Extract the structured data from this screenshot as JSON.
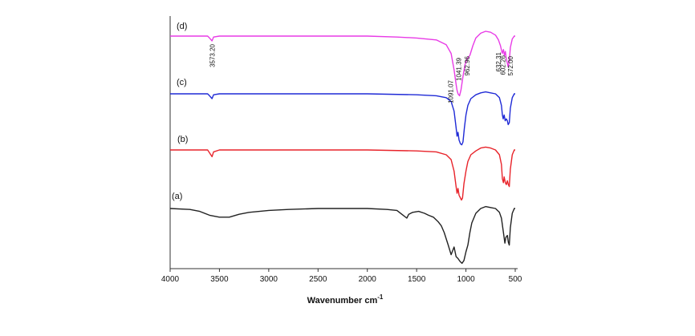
{
  "chart_data": {
    "type": "line",
    "title": "",
    "xlabel": "Wavenumber cm",
    "xlabel_superscript": "-1",
    "ylabel": "",
    "xlim": [
      4000,
      500
    ],
    "x_reversed": true,
    "xticks": [
      "4000",
      "3500",
      "3000",
      "2500",
      "2000",
      "1500",
      "1000",
      "500"
    ],
    "grid": false,
    "legend": "none",
    "series": [
      {
        "name": "(a)",
        "color": "#222222",
        "points": [
          [
            4000,
            0
          ],
          [
            3800,
            -1
          ],
          [
            3700,
            -3
          ],
          [
            3600,
            -7
          ],
          [
            3500,
            -9
          ],
          [
            3400,
            -9
          ],
          [
            3300,
            -6
          ],
          [
            3200,
            -4
          ],
          [
            3000,
            -2
          ],
          [
            2800,
            -1
          ],
          [
            2500,
            0
          ],
          [
            2200,
            0
          ],
          [
            2000,
            0
          ],
          [
            1800,
            -1
          ],
          [
            1700,
            -2
          ],
          [
            1650,
            -6
          ],
          [
            1600,
            -10
          ],
          [
            1580,
            -6
          ],
          [
            1540,
            -4
          ],
          [
            1480,
            -3
          ],
          [
            1420,
            -5
          ],
          [
            1380,
            -7
          ],
          [
            1330,
            -9
          ],
          [
            1280,
            -14
          ],
          [
            1250,
            -18
          ],
          [
            1220,
            -25
          ],
          [
            1180,
            -38
          ],
          [
            1150,
            -48
          ],
          [
            1120,
            -40
          ],
          [
            1100,
            -50
          ],
          [
            1080,
            -52
          ],
          [
            1060,
            -55
          ],
          [
            1040,
            -57
          ],
          [
            1020,
            -54
          ],
          [
            1000,
            -45
          ],
          [
            980,
            -38
          ],
          [
            960,
            -25
          ],
          [
            940,
            -15
          ],
          [
            900,
            -5
          ],
          [
            850,
            0
          ],
          [
            800,
            2
          ],
          [
            750,
            1
          ],
          [
            700,
            0
          ],
          [
            660,
            -4
          ],
          [
            640,
            -10
          ],
          [
            620,
            -25
          ],
          [
            605,
            -36
          ],
          [
            595,
            -30
          ],
          [
            580,
            -28
          ],
          [
            570,
            -35
          ],
          [
            560,
            -38
          ],
          [
            550,
            -20
          ],
          [
            530,
            -5
          ],
          [
            510,
            0
          ],
          [
            500,
            0
          ]
        ]
      },
      {
        "name": "(b)",
        "color": "#e8232a",
        "points": [
          [
            4000,
            0
          ],
          [
            3800,
            0
          ],
          [
            3620,
            0
          ],
          [
            3600,
            -3
          ],
          [
            3575,
            -7
          ],
          [
            3560,
            -2
          ],
          [
            3500,
            0
          ],
          [
            3000,
            0
          ],
          [
            2500,
            0
          ],
          [
            2000,
            0
          ],
          [
            1500,
            -1
          ],
          [
            1300,
            -2
          ],
          [
            1200,
            -5
          ],
          [
            1150,
            -10
          ],
          [
            1120,
            -22
          ],
          [
            1100,
            -38
          ],
          [
            1090,
            -45
          ],
          [
            1080,
            -40
          ],
          [
            1070,
            -47
          ],
          [
            1055,
            -50
          ],
          [
            1045,
            -52
          ],
          [
            1035,
            -50
          ],
          [
            1020,
            -35
          ],
          [
            1000,
            -22
          ],
          [
            980,
            -12
          ],
          [
            950,
            -5
          ],
          [
            900,
            -1
          ],
          [
            850,
            2
          ],
          [
            800,
            3
          ],
          [
            750,
            2
          ],
          [
            700,
            0
          ],
          [
            660,
            -5
          ],
          [
            640,
            -15
          ],
          [
            630,
            -30
          ],
          [
            620,
            -34
          ],
          [
            612,
            -28
          ],
          [
            600,
            -34
          ],
          [
            590,
            -36
          ],
          [
            580,
            -32
          ],
          [
            570,
            -36
          ],
          [
            560,
            -38
          ],
          [
            550,
            -20
          ],
          [
            530,
            -5
          ],
          [
            510,
            0
          ],
          [
            500,
            0
          ]
        ]
      },
      {
        "name": "(c)",
        "color": "#1f2ad6",
        "points": [
          [
            4000,
            0
          ],
          [
            3800,
            0
          ],
          [
            3620,
            0
          ],
          [
            3600,
            -2
          ],
          [
            3575,
            -5
          ],
          [
            3560,
            -1
          ],
          [
            3500,
            0
          ],
          [
            3000,
            0
          ],
          [
            2500,
            0
          ],
          [
            2000,
            0
          ],
          [
            1500,
            -1
          ],
          [
            1300,
            -2
          ],
          [
            1200,
            -4
          ],
          [
            1150,
            -8
          ],
          [
            1120,
            -18
          ],
          [
            1100,
            -35
          ],
          [
            1090,
            -44
          ],
          [
            1080,
            -40
          ],
          [
            1070,
            -48
          ],
          [
            1055,
            -52
          ],
          [
            1042,
            -53
          ],
          [
            1030,
            -50
          ],
          [
            1015,
            -35
          ],
          [
            1000,
            -22
          ],
          [
            980,
            -12
          ],
          [
            950,
            -5
          ],
          [
            900,
            -1
          ],
          [
            850,
            1
          ],
          [
            800,
            2
          ],
          [
            750,
            1
          ],
          [
            700,
            0
          ],
          [
            660,
            -4
          ],
          [
            640,
            -12
          ],
          [
            630,
            -22
          ],
          [
            622,
            -26
          ],
          [
            612,
            -22
          ],
          [
            602,
            -28
          ],
          [
            590,
            -26
          ],
          [
            580,
            -28
          ],
          [
            572,
            -32
          ],
          [
            560,
            -30
          ],
          [
            550,
            -15
          ],
          [
            530,
            -4
          ],
          [
            510,
            0
          ],
          [
            500,
            0
          ]
        ]
      },
      {
        "name": "(d)",
        "color": "#e83be6",
        "points": [
          [
            4000,
            0
          ],
          [
            3800,
            0
          ],
          [
            3620,
            0
          ],
          [
            3600,
            -2
          ],
          [
            3575,
            -5
          ],
          [
            3560,
            -1
          ],
          [
            3500,
            0
          ],
          [
            3000,
            0
          ],
          [
            2500,
            0
          ],
          [
            2000,
            0
          ],
          [
            1700,
            -1
          ],
          [
            1500,
            -2
          ],
          [
            1300,
            -4
          ],
          [
            1200,
            -9
          ],
          [
            1150,
            -18
          ],
          [
            1120,
            -35
          ],
          [
            1100,
            -50
          ],
          [
            1091,
            -56
          ],
          [
            1080,
            -60
          ],
          [
            1065,
            -62
          ],
          [
            1050,
            -56
          ],
          [
            1030,
            -42
          ],
          [
            1010,
            -30
          ],
          [
            990,
            -24
          ],
          [
            960,
            -20
          ],
          [
            930,
            -10
          ],
          [
            900,
            -2
          ],
          [
            850,
            3
          ],
          [
            800,
            5
          ],
          [
            750,
            4
          ],
          [
            700,
            1
          ],
          [
            670,
            -4
          ],
          [
            650,
            -10
          ],
          [
            632,
            -18
          ],
          [
            620,
            -14
          ],
          [
            610,
            -20
          ],
          [
            600,
            -16
          ],
          [
            590,
            -24
          ],
          [
            580,
            -28
          ],
          [
            572,
            -32
          ],
          [
            560,
            -26
          ],
          [
            550,
            -12
          ],
          [
            530,
            -3
          ],
          [
            510,
            0
          ],
          [
            500,
            0
          ]
        ]
      }
    ],
    "annotations": [
      {
        "text": "3573.20",
        "x": 3573,
        "series": "(d)"
      },
      {
        "text": "1091.07",
        "x": 1091,
        "series": "(d)"
      },
      {
        "text": "962.96",
        "x": 962,
        "series": "(d)"
      },
      {
        "text": "632.31",
        "x": 632,
        "series": "(d)"
      },
      {
        "text": "572.00",
        "x": 572,
        "series": "(d)"
      },
      {
        "text": "1041.39",
        "x": 1041,
        "series": "(c)"
      },
      {
        "text": "602.26",
        "x": 602,
        "series": "(c)"
      }
    ]
  }
}
